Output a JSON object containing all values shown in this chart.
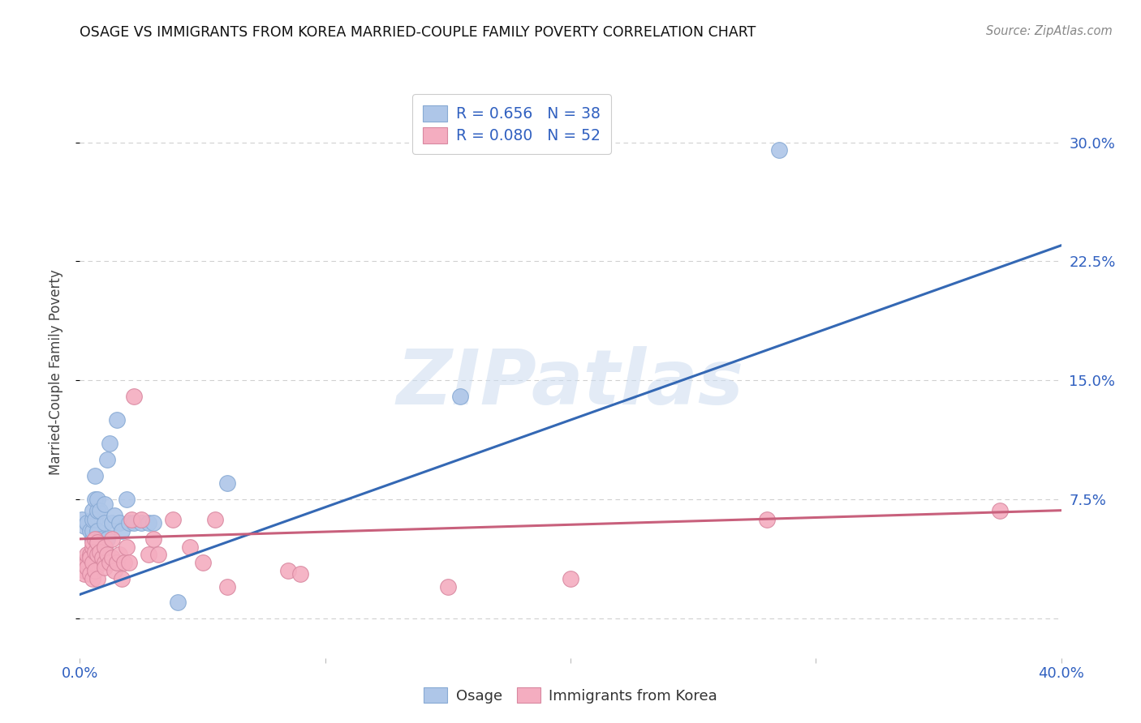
{
  "title": "OSAGE VS IMMIGRANTS FROM KOREA MARRIED-COUPLE FAMILY POVERTY CORRELATION CHART",
  "source": "Source: ZipAtlas.com",
  "ylabel": "Married-Couple Family Poverty",
  "xlim": [
    0.0,
    0.4
  ],
  "ylim": [
    -0.025,
    0.335
  ],
  "xticks": [
    0.0,
    0.1,
    0.2,
    0.3,
    0.4
  ],
  "xtick_labels": [
    "0.0%",
    "",
    "",
    "",
    "40.0%"
  ],
  "yticks_right": [
    0.0,
    0.075,
    0.15,
    0.225,
    0.3
  ],
  "ytick_labels_right": [
    "",
    "7.5%",
    "15.0%",
    "22.5%",
    "30.0%"
  ],
  "watermark": "ZIPatlas",
  "blue_color": "#aec6e8",
  "blue_line_color": "#3468b4",
  "pink_color": "#f4adc0",
  "pink_line_color": "#c8607c",
  "blue_scatter": [
    [
      0.001,
      0.062
    ],
    [
      0.002,
      0.058
    ],
    [
      0.003,
      0.06
    ],
    [
      0.004,
      0.055
    ],
    [
      0.005,
      0.05
    ],
    [
      0.005,
      0.055
    ],
    [
      0.005,
      0.062
    ],
    [
      0.005,
      0.068
    ],
    [
      0.006,
      0.04
    ],
    [
      0.006,
      0.062
    ],
    [
      0.006,
      0.075
    ],
    [
      0.006,
      0.09
    ],
    [
      0.007,
      0.055
    ],
    [
      0.007,
      0.068
    ],
    [
      0.007,
      0.075
    ],
    [
      0.008,
      0.068
    ],
    [
      0.008,
      0.05
    ],
    [
      0.009,
      0.045
    ],
    [
      0.01,
      0.072
    ],
    [
      0.01,
      0.06
    ],
    [
      0.011,
      0.1
    ],
    [
      0.011,
      0.05
    ],
    [
      0.012,
      0.11
    ],
    [
      0.013,
      0.06
    ],
    [
      0.014,
      0.065
    ],
    [
      0.015,
      0.125
    ],
    [
      0.016,
      0.06
    ],
    [
      0.017,
      0.055
    ],
    [
      0.019,
      0.075
    ],
    [
      0.02,
      0.06
    ],
    [
      0.022,
      0.06
    ],
    [
      0.025,
      0.06
    ],
    [
      0.028,
      0.06
    ],
    [
      0.03,
      0.06
    ],
    [
      0.04,
      0.01
    ],
    [
      0.06,
      0.085
    ],
    [
      0.155,
      0.14
    ],
    [
      0.285,
      0.295
    ]
  ],
  "pink_scatter": [
    [
      0.001,
      0.035
    ],
    [
      0.002,
      0.03
    ],
    [
      0.002,
      0.028
    ],
    [
      0.003,
      0.035
    ],
    [
      0.003,
      0.04
    ],
    [
      0.003,
      0.032
    ],
    [
      0.004,
      0.04
    ],
    [
      0.004,
      0.038
    ],
    [
      0.004,
      0.028
    ],
    [
      0.005,
      0.045
    ],
    [
      0.005,
      0.048
    ],
    [
      0.005,
      0.035
    ],
    [
      0.005,
      0.025
    ],
    [
      0.006,
      0.05
    ],
    [
      0.006,
      0.042
    ],
    [
      0.006,
      0.03
    ],
    [
      0.007,
      0.048
    ],
    [
      0.007,
      0.04
    ],
    [
      0.007,
      0.025
    ],
    [
      0.008,
      0.042
    ],
    [
      0.009,
      0.038
    ],
    [
      0.01,
      0.035
    ],
    [
      0.01,
      0.045
    ],
    [
      0.01,
      0.032
    ],
    [
      0.011,
      0.04
    ],
    [
      0.012,
      0.035
    ],
    [
      0.013,
      0.05
    ],
    [
      0.013,
      0.038
    ],
    [
      0.014,
      0.03
    ],
    [
      0.015,
      0.035
    ],
    [
      0.016,
      0.04
    ],
    [
      0.017,
      0.025
    ],
    [
      0.018,
      0.035
    ],
    [
      0.019,
      0.045
    ],
    [
      0.02,
      0.035
    ],
    [
      0.021,
      0.062
    ],
    [
      0.022,
      0.14
    ],
    [
      0.025,
      0.062
    ],
    [
      0.028,
      0.04
    ],
    [
      0.03,
      0.05
    ],
    [
      0.032,
      0.04
    ],
    [
      0.038,
      0.062
    ],
    [
      0.045,
      0.045
    ],
    [
      0.05,
      0.035
    ],
    [
      0.055,
      0.062
    ],
    [
      0.06,
      0.02
    ],
    [
      0.085,
      0.03
    ],
    [
      0.09,
      0.028
    ],
    [
      0.15,
      0.02
    ],
    [
      0.2,
      0.025
    ],
    [
      0.28,
      0.062
    ],
    [
      0.375,
      0.068
    ]
  ],
  "blue_line_x": [
    0.0,
    0.4
  ],
  "blue_line_y": [
    0.015,
    0.235
  ],
  "pink_line_x": [
    0.0,
    0.4
  ],
  "pink_line_y": [
    0.05,
    0.068
  ],
  "background_color": "#ffffff",
  "grid_color": "#d0d0d0"
}
